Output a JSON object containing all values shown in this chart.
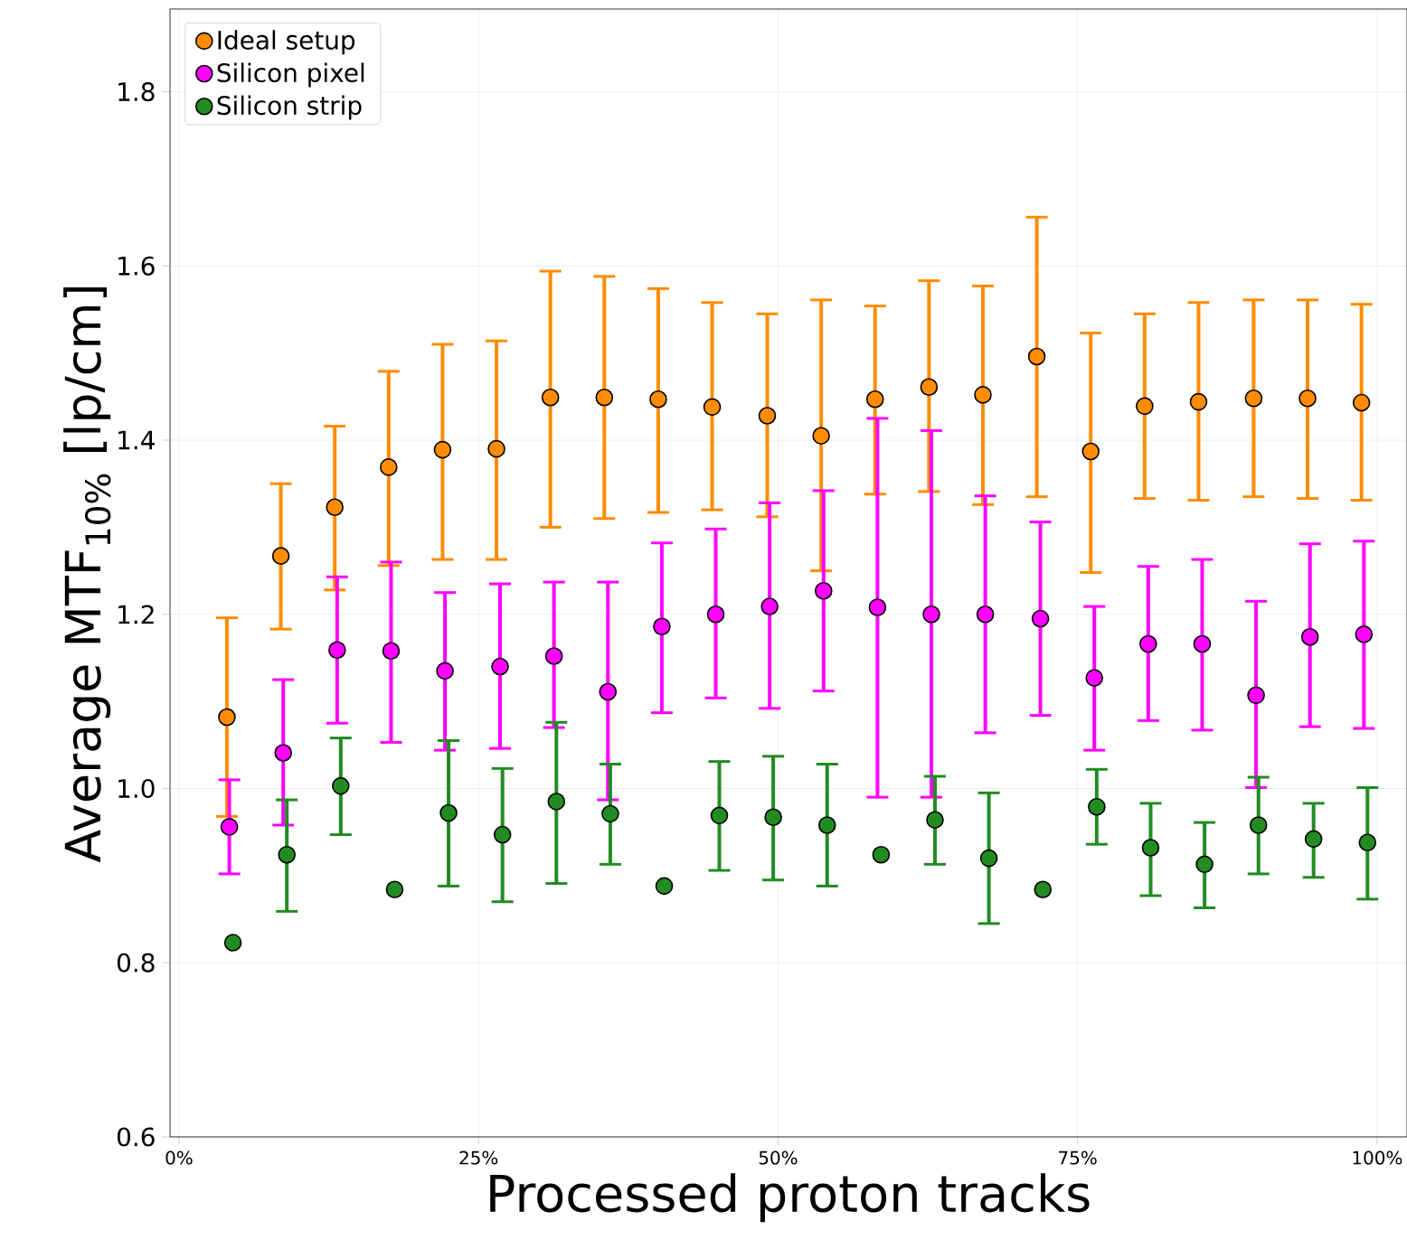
{
  "chart_data": {
    "type": "scatter",
    "xlabel": "Processed proton tracks",
    "ylabel": "Average MTF$_{10%}$ [lp/cm]",
    "xlim": [
      -0.75,
      102.5
    ],
    "ylim": [
      0.6,
      1.895
    ],
    "xticks": [
      {
        "value": 0,
        "label": "0%"
      },
      {
        "value": 25,
        "label": "25%"
      },
      {
        "value": 50,
        "label": "50%"
      },
      {
        "value": 75,
        "label": "75%"
      },
      {
        "value": 100,
        "label": "100%"
      }
    ],
    "yticks": [
      {
        "value": 0.6,
        "label": "0.6"
      },
      {
        "value": 0.8,
        "label": "0.8"
      },
      {
        "value": 1.0,
        "label": "1.0"
      },
      {
        "value": 1.2,
        "label": "1.2"
      },
      {
        "value": 1.4,
        "label": "1.4"
      },
      {
        "value": 1.6,
        "label": "1.6"
      },
      {
        "value": 1.8,
        "label": "1.8"
      }
    ],
    "grid": true,
    "legend": "top left",
    "marker": "circle",
    "series": [
      {
        "name": "Ideal setup",
        "color": "#ff8c00",
        "x": [
          4.0,
          8.5,
          13.0,
          17.5,
          22.0,
          26.5,
          31.0,
          35.5,
          40.0,
          44.5,
          49.1,
          53.6,
          58.1,
          62.6,
          67.1,
          71.6,
          76.1,
          80.6,
          85.1,
          89.7,
          94.2,
          98.7
        ],
        "values": [
          1.082,
          1.267,
          1.323,
          1.369,
          1.389,
          1.39,
          1.449,
          1.449,
          1.447,
          1.438,
          1.428,
          1.405,
          1.447,
          1.461,
          1.452,
          1.496,
          1.387,
          1.439,
          1.444,
          1.448,
          1.448,
          1.443
        ],
        "errors": [
          [
            0.968,
            1.196
          ],
          [
            1.183,
            1.35
          ],
          [
            1.228,
            1.416
          ],
          [
            1.256,
            1.479
          ],
          [
            1.263,
            1.51
          ],
          [
            1.263,
            1.514
          ],
          [
            1.3,
            1.594
          ],
          [
            1.31,
            1.588
          ],
          [
            1.317,
            1.574
          ],
          [
            1.32,
            1.558
          ],
          [
            1.312,
            1.545
          ],
          [
            1.25,
            1.561
          ],
          [
            1.338,
            1.554
          ],
          [
            1.341,
            1.583
          ],
          [
            1.326,
            1.577
          ],
          [
            1.335,
            1.656
          ],
          [
            1.248,
            1.523
          ],
          [
            1.333,
            1.545
          ],
          [
            1.331,
            1.558
          ],
          [
            1.335,
            1.561
          ],
          [
            1.333,
            1.561
          ],
          [
            1.331,
            1.556
          ]
        ]
      },
      {
        "name": "Silicon pixel",
        "color": "#ff00ff",
        "x": [
          4.2,
          8.7,
          13.2,
          17.7,
          22.2,
          26.8,
          31.3,
          35.8,
          40.3,
          44.8,
          49.3,
          53.8,
          58.3,
          62.8,
          67.3,
          71.9,
          76.4,
          80.9,
          85.4,
          89.9,
          94.4,
          98.9
        ],
        "values": [
          0.956,
          1.041,
          1.159,
          1.158,
          1.135,
          1.14,
          1.152,
          1.111,
          1.186,
          1.2,
          1.209,
          1.227,
          1.208,
          1.2,
          1.2,
          1.195,
          1.127,
          1.166,
          1.166,
          1.107,
          1.174,
          1.177
        ],
        "errors": [
          [
            0.902,
            1.01
          ],
          [
            0.958,
            1.125
          ],
          [
            1.075,
            1.243
          ],
          [
            1.053,
            1.26
          ],
          [
            1.044,
            1.225
          ],
          [
            1.046,
            1.235
          ],
          [
            1.07,
            1.237
          ],
          [
            0.987,
            1.237
          ],
          [
            1.087,
            1.282
          ],
          [
            1.104,
            1.298
          ],
          [
            1.092,
            1.328
          ],
          [
            1.112,
            1.342
          ],
          [
            0.99,
            1.425
          ],
          [
            0.99,
            1.411
          ],
          [
            1.064,
            1.336
          ],
          [
            1.084,
            1.306
          ],
          [
            1.044,
            1.209
          ],
          [
            1.078,
            1.255
          ],
          [
            1.067,
            1.263
          ],
          [
            1.001,
            1.215
          ],
          [
            1.071,
            1.281
          ],
          [
            1.069,
            1.284
          ]
        ]
      },
      {
        "name": "Silicon strip",
        "color": "#228b22",
        "x": [
          4.5,
          9.0,
          13.5,
          18.0,
          22.5,
          27.0,
          31.5,
          36.0,
          40.5,
          45.1,
          49.6,
          54.1,
          58.6,
          63.1,
          67.6,
          72.1,
          76.6,
          81.1,
          85.6,
          90.1,
          94.7,
          99.2
        ],
        "values": [
          0.823,
          0.924,
          1.003,
          0.884,
          0.972,
          0.947,
          0.985,
          0.971,
          0.888,
          0.969,
          0.967,
          0.958,
          0.924,
          0.964,
          0.92,
          0.884,
          0.979,
          0.932,
          0.913,
          0.958,
          0.942,
          0.938
        ],
        "errors": [
          null,
          [
            0.859,
            0.987
          ],
          [
            0.947,
            1.058
          ],
          null,
          [
            0.888,
            1.055
          ],
          [
            0.87,
            1.023
          ],
          [
            0.891,
            1.076
          ],
          [
            0.913,
            1.028
          ],
          null,
          [
            0.906,
            1.031
          ],
          [
            0.895,
            1.037
          ],
          [
            0.888,
            1.028
          ],
          null,
          [
            0.913,
            1.014
          ],
          [
            0.845,
            0.995
          ],
          null,
          [
            0.936,
            1.022
          ],
          [
            0.877,
            0.983
          ],
          [
            0.863,
            0.961
          ],
          [
            0.902,
            1.013
          ],
          [
            0.898,
            0.983
          ],
          [
            0.873,
            1.001
          ]
        ]
      }
    ]
  }
}
